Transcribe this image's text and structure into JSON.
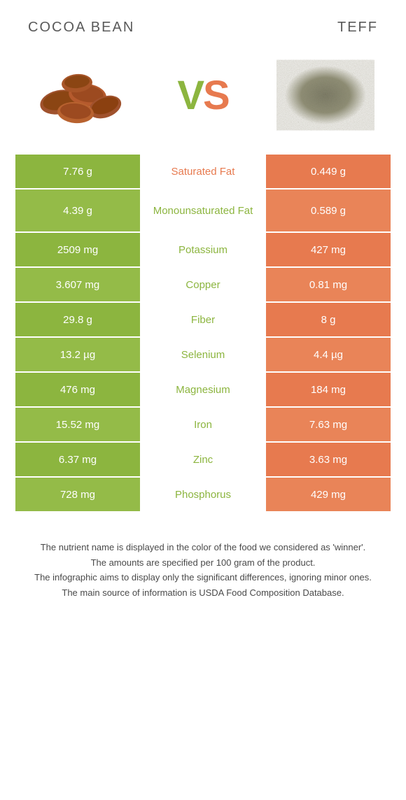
{
  "colors": {
    "green": "#8cb53f",
    "green_alt": "#94bb48",
    "orange": "#e77a4f",
    "orange_alt": "#e98458",
    "mid_bg": "#ffffff",
    "nutrient_green": "#8cb53f",
    "nutrient_orange": "#e77a4f",
    "vs_green": "#8cb53f",
    "vs_orange": "#e77a4f"
  },
  "header": {
    "left_title": "COCOA BEAN",
    "right_title": "TEFF"
  },
  "vs": {
    "v": "V",
    "s": "S"
  },
  "rows": [
    {
      "left": "7.76 g",
      "nutrient": "Saturated Fat",
      "right": "0.449 g",
      "winner": "right",
      "tall": false
    },
    {
      "left": "4.39 g",
      "nutrient": "Monounsaturated Fat",
      "right": "0.589 g",
      "winner": "left",
      "tall": true
    },
    {
      "left": "2509 mg",
      "nutrient": "Potassium",
      "right": "427 mg",
      "winner": "left",
      "tall": false
    },
    {
      "left": "3.607 mg",
      "nutrient": "Copper",
      "right": "0.81 mg",
      "winner": "left",
      "tall": false
    },
    {
      "left": "29.8 g",
      "nutrient": "Fiber",
      "right": "8 g",
      "winner": "left",
      "tall": false
    },
    {
      "left": "13.2 µg",
      "nutrient": "Selenium",
      "right": "4.4 µg",
      "winner": "left",
      "tall": false
    },
    {
      "left": "476 mg",
      "nutrient": "Magnesium",
      "right": "184 mg",
      "winner": "left",
      "tall": false
    },
    {
      "left": "15.52 mg",
      "nutrient": "Iron",
      "right": "7.63 mg",
      "winner": "left",
      "tall": false
    },
    {
      "left": "6.37 mg",
      "nutrient": "Zinc",
      "right": "3.63 mg",
      "winner": "left",
      "tall": false
    },
    {
      "left": "728 mg",
      "nutrient": "Phosphorus",
      "right": "429 mg",
      "winner": "left",
      "tall": false
    }
  ],
  "footer": {
    "line1": "The nutrient name is displayed in the color of the food we considered as 'winner'.",
    "line2": "The amounts are specified per 100 gram of the product.",
    "line3": "The infographic aims to display only the significant differences, ignoring minor ones.",
    "line4": "The main source of information is USDA Food Composition Database."
  }
}
